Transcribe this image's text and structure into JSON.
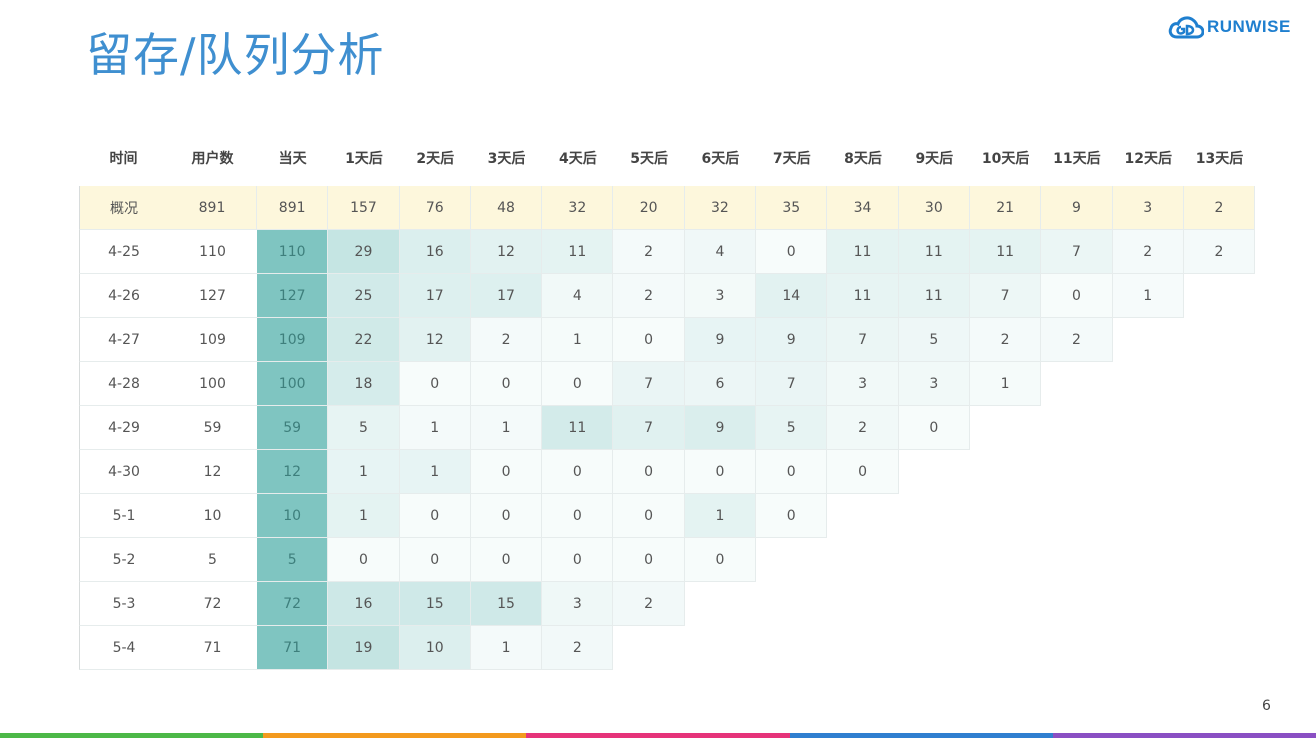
{
  "title": "留存/队列分析",
  "logo": {
    "text": "RUNWISE",
    "icon": "cloud-logo-icon"
  },
  "page_number": "6",
  "colors": {
    "title": "#3f8fd0",
    "summary_bg": "#fdf7dc",
    "day0": "#7fc5c1",
    "bar": [
      "#4cb848",
      "#f39a1e",
      "#e6337a",
      "#2f7fd0",
      "#8a4fc3"
    ]
  },
  "table": {
    "headers": [
      "时间",
      "用户数",
      "当天",
      "1天后",
      "2天后",
      "3天后",
      "4天后",
      "5天后",
      "6天后",
      "7天后",
      "8天后",
      "9天后",
      "10天后",
      "11天后",
      "12天后",
      "13天后"
    ],
    "summary": {
      "label": "概况",
      "users": "891",
      "values": [
        "891",
        "157",
        "76",
        "48",
        "32",
        "20",
        "32",
        "35",
        "34",
        "30",
        "21",
        "9",
        "3",
        "2"
      ]
    },
    "rows": [
      {
        "label": "4-25",
        "users": "110",
        "values": [
          "110",
          "29",
          "16",
          "12",
          "11",
          "2",
          "4",
          "0",
          "11",
          "11",
          "11",
          "7",
          "2",
          "2"
        ]
      },
      {
        "label": "4-26",
        "users": "127",
        "values": [
          "127",
          "25",
          "17",
          "17",
          "4",
          "2",
          "3",
          "14",
          "11",
          "11",
          "7",
          "0",
          "1"
        ]
      },
      {
        "label": "4-27",
        "users": "109",
        "values": [
          "109",
          "22",
          "12",
          "2",
          "1",
          "0",
          "9",
          "9",
          "7",
          "5",
          "2",
          "2"
        ]
      },
      {
        "label": "4-28",
        "users": "100",
        "values": [
          "100",
          "18",
          "0",
          "0",
          "0",
          "7",
          "6",
          "7",
          "3",
          "3",
          "1"
        ]
      },
      {
        "label": "4-29",
        "users": "59",
        "values": [
          "59",
          "5",
          "1",
          "1",
          "11",
          "7",
          "9",
          "5",
          "2",
          "0"
        ]
      },
      {
        "label": "4-30",
        "users": "12",
        "values": [
          "12",
          "1",
          "1",
          "0",
          "0",
          "0",
          "0",
          "0",
          "0"
        ]
      },
      {
        "label": "5-1",
        "users": "10",
        "values": [
          "10",
          "1",
          "0",
          "0",
          "0",
          "0",
          "1",
          "0"
        ]
      },
      {
        "label": "5-2",
        "users": "5",
        "values": [
          "5",
          "0",
          "0",
          "0",
          "0",
          "0",
          "0"
        ]
      },
      {
        "label": "5-3",
        "users": "72",
        "values": [
          "72",
          "16",
          "15",
          "15",
          "3",
          "2"
        ]
      },
      {
        "label": "5-4",
        "users": "71",
        "values": [
          "71",
          "19",
          "10",
          "1",
          "2"
        ]
      }
    ]
  }
}
